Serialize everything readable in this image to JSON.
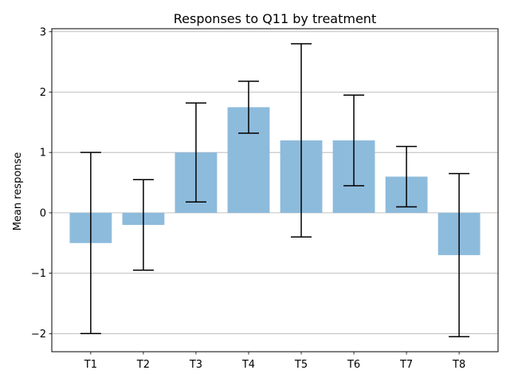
{
  "chart_data": {
    "type": "bar",
    "title": "Responses to Q11 by treatment",
    "xlabel": "",
    "ylabel": "Mean response",
    "categories": [
      "T1",
      "T2",
      "T3",
      "T4",
      "T5",
      "T6",
      "T7",
      "T8"
    ],
    "values": [
      -0.5,
      -0.2,
      1.0,
      1.75,
      1.2,
      1.2,
      0.6,
      -0.7
    ],
    "error_low": [
      -2.0,
      -0.95,
      0.18,
      1.32,
      -0.4,
      0.45,
      0.1,
      -2.05
    ],
    "error_high": [
      1.0,
      0.55,
      1.82,
      2.18,
      2.8,
      1.95,
      1.1,
      0.65
    ],
    "ylim": [
      -2.3,
      3.05
    ],
    "yticks": [
      -2,
      -1,
      0,
      1,
      2,
      3
    ],
    "ytick_labels": [
      "−2",
      "−1",
      "0",
      "1",
      "2",
      "3"
    ],
    "grid": "y-axis",
    "bar_color": "#8dbbdc",
    "errorbar_color": "#000000",
    "grid_color": "#b0b0b0"
  }
}
